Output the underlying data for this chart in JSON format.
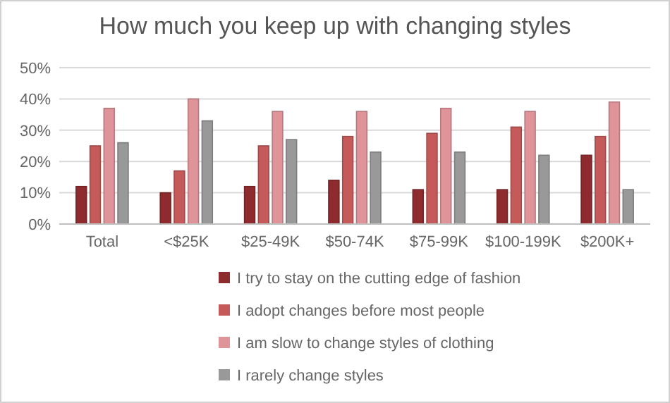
{
  "chart_data": {
    "type": "bar",
    "title": "How much you keep up with changing styles",
    "categories": [
      "Total",
      "<$25K",
      "$25-49K",
      "$50-74K",
      "$75-99K",
      "$100-199K",
      "$200K+"
    ],
    "series": [
      {
        "name": "I try to stay on the cutting edge of fashion",
        "color": "#8e2b2f",
        "values": [
          12,
          10,
          12,
          14,
          11,
          11,
          22
        ]
      },
      {
        "name": "I adopt changes before most people",
        "color": "#c55a5a",
        "values": [
          25,
          17,
          25,
          28,
          29,
          31,
          28
        ]
      },
      {
        "name": "I am slow to change styles of clothing",
        "color": "#df9499",
        "values": [
          37,
          40,
          36,
          36,
          37,
          36,
          39
        ]
      },
      {
        "name": "I rarely change styles",
        "color": "#999999",
        "values": [
          26,
          33,
          27,
          23,
          23,
          22,
          11
        ]
      }
    ],
    "ylim": [
      0,
      50
    ],
    "yticks": [
      {
        "value": 0,
        "label": "0%"
      },
      {
        "value": 10,
        "label": "10%"
      },
      {
        "value": 20,
        "label": "20%"
      },
      {
        "value": 30,
        "label": "30%"
      },
      {
        "value": 40,
        "label": "40%"
      },
      {
        "value": 50,
        "label": "50%"
      }
    ],
    "grid": "y",
    "legend": "bottom"
  }
}
